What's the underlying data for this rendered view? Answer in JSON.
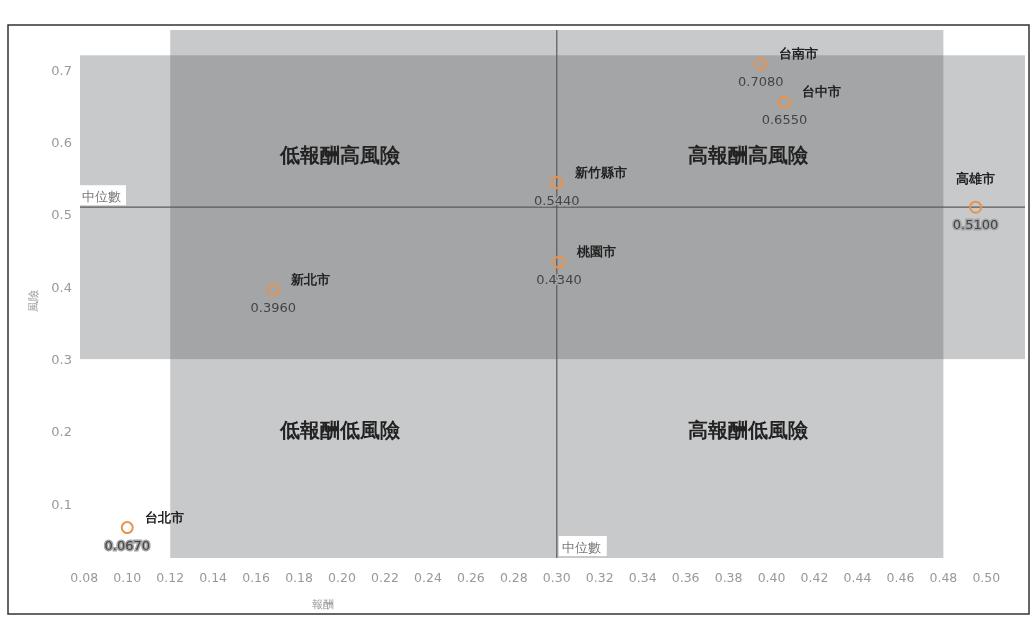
{
  "chart_data": {
    "type": "scatter",
    "xlabel": "報酬",
    "ylabel": "風險",
    "xlim": [
      0.078,
      0.518
    ],
    "ylim": [
      0.025,
      0.755
    ],
    "xticks": [
      {
        "value": 0.08,
        "label": "0.08"
      },
      {
        "value": 0.1,
        "label": "0.10"
      },
      {
        "value": 0.12,
        "label": "0.12"
      },
      {
        "value": 0.14,
        "label": "0.14"
      },
      {
        "value": 0.16,
        "label": "0.16"
      },
      {
        "value": 0.18,
        "label": "0.18"
      },
      {
        "value": 0.2,
        "label": "0.20"
      },
      {
        "value": 0.22,
        "label": "0.22"
      },
      {
        "value": 0.24,
        "label": "0.24"
      },
      {
        "value": 0.26,
        "label": "0.26"
      },
      {
        "value": 0.28,
        "label": "0.28"
      },
      {
        "value": 0.3,
        "label": "0.30"
      },
      {
        "value": 0.32,
        "label": "0.32"
      },
      {
        "value": 0.34,
        "label": "0.34"
      },
      {
        "value": 0.36,
        "label": "0.36"
      },
      {
        "value": 0.38,
        "label": "0.38"
      },
      {
        "value": 0.4,
        "label": "0.40"
      },
      {
        "value": 0.42,
        "label": "0.42"
      },
      {
        "value": 0.44,
        "label": "0.44"
      },
      {
        "value": 0.46,
        "label": "0.46"
      },
      {
        "value": 0.48,
        "label": "0.48"
      },
      {
        "value": 0.5,
        "label": "0.50"
      }
    ],
    "yticks": [
      0.1,
      0.2,
      0.3,
      0.4,
      0.5,
      0.6,
      0.7
    ],
    "marker": "circle",
    "grid": false,
    "series": [
      {
        "name": "台北市",
        "color": "#e8924a",
        "x": [
          0.1
        ],
        "values": [
          0.067
        ],
        "value_labels": [
          "0.0670"
        ]
      },
      {
        "name": "新北市",
        "color": "#e8924a",
        "x": [
          0.168
        ],
        "values": [
          0.396
        ],
        "value_labels": [
          "0.3960"
        ]
      },
      {
        "name": "新竹縣市",
        "color": "#e8924a",
        "x": [
          0.3
        ],
        "values": [
          0.544
        ],
        "value_labels": [
          "0.5440"
        ]
      },
      {
        "name": "桃園市",
        "color": "#e8924a",
        "x": [
          0.301
        ],
        "values": [
          0.434
        ],
        "value_labels": [
          "0.4340"
        ]
      },
      {
        "name": "台南市",
        "color": "#e8924a",
        "x": [
          0.395
        ],
        "values": [
          0.708
        ],
        "value_labels": [
          "0.7080"
        ]
      },
      {
        "name": "台中市",
        "color": "#e8924a",
        "x": [
          0.406
        ],
        "values": [
          0.655
        ],
        "value_labels": [
          "0.6550"
        ]
      },
      {
        "name": "高雄市",
        "color": "#e8924a",
        "x": [
          0.495
        ],
        "values": [
          0.51
        ],
        "value_labels": [
          "0.5100"
        ]
      }
    ],
    "bands": [
      {
        "axis": "x",
        "from": 0.12,
        "to": 0.48,
        "color": "#606266"
      },
      {
        "axis": "y",
        "from": 0.3,
        "to": 0.72,
        "color": "#606266"
      }
    ],
    "ref_lines": [
      {
        "axis": "x",
        "value": 0.3,
        "label": "中位數",
        "color": "#5a5a5a"
      },
      {
        "axis": "y",
        "value": 0.51,
        "label": "中位數",
        "color": "#5a5a5a"
      }
    ],
    "annotations": [
      "低報酬高風險",
      "高報酬高風險",
      "低報酬低風險",
      "高報酬低風險"
    ]
  }
}
